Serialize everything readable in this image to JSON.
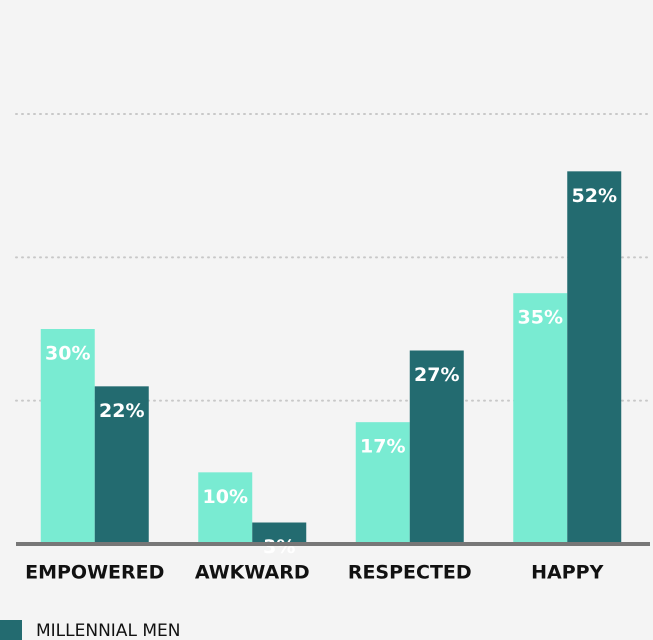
{
  "chart_data": {
    "type": "bar",
    "categories": [
      "EMPOWERED",
      "AWKWARD",
      "RESPECTED",
      "HAPPY"
    ],
    "series": [
      {
        "color": "#79ebd2",
        "values": [
          30,
          10,
          17,
          35
        ],
        "value_labels": [
          "30%",
          "10%",
          "17%",
          "35%"
        ]
      },
      {
        "name": "MILLENNIAL MEN",
        "color": "#236b70",
        "values": [
          22,
          3,
          27,
          52
        ],
        "value_labels": [
          "22%",
          "3%",
          "27%",
          "52%"
        ]
      }
    ],
    "ylim": [
      0,
      60
    ],
    "yticks": [
      20,
      40,
      60
    ],
    "grid": true
  }
}
